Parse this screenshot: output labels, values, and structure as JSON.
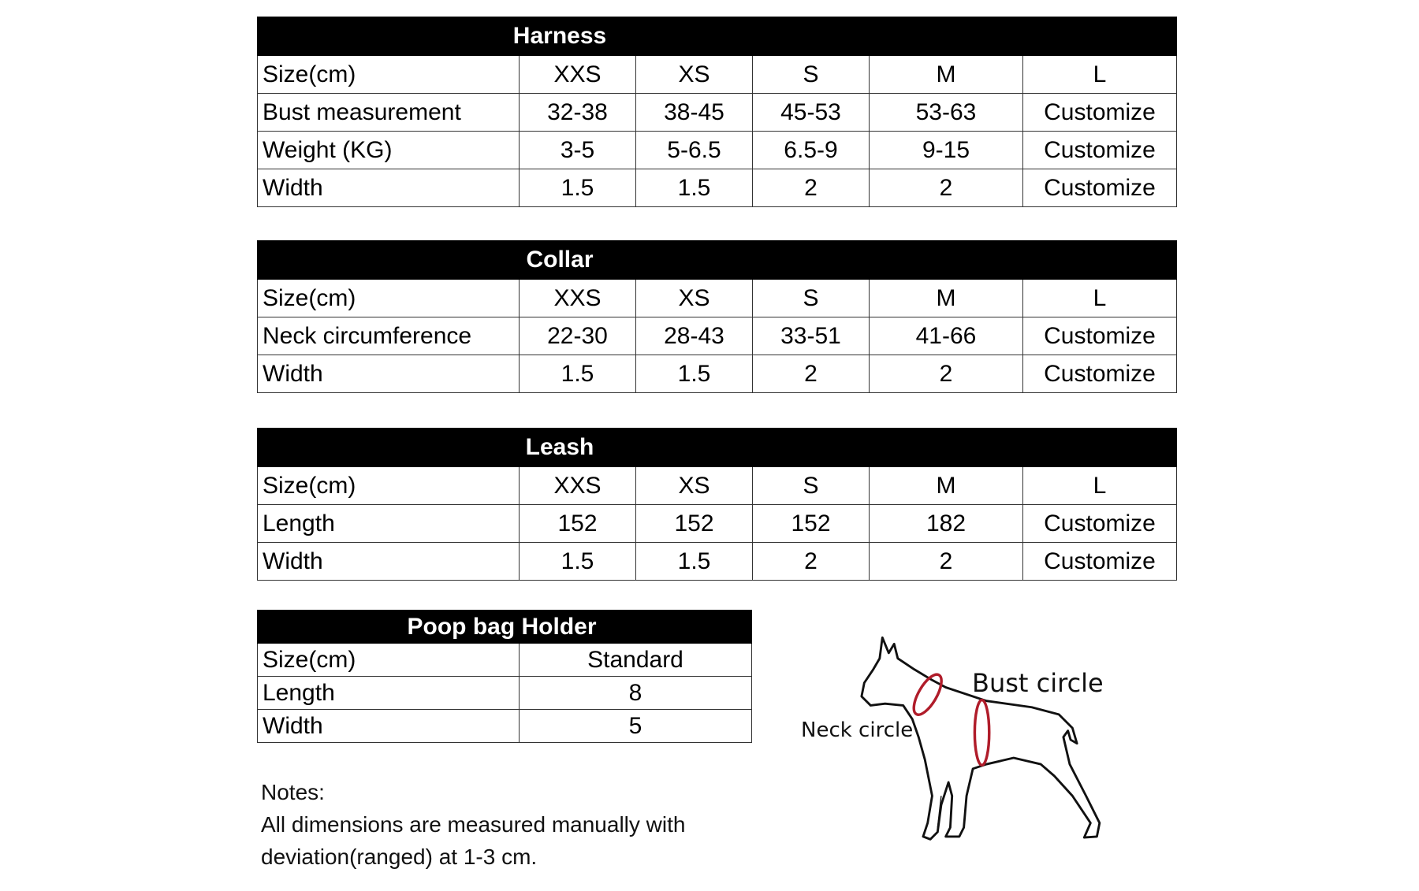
{
  "tables": [
    {
      "title": "Harness",
      "rows": [
        [
          "Size(cm)",
          "XXS",
          "XS",
          "S",
          "M",
          "L"
        ],
        [
          "Bust measurement",
          "32-38",
          "38-45",
          "45-53",
          "53-63",
          "Customize"
        ],
        [
          "Weight (KG)",
          "3-5",
          "5-6.5",
          "6.5-9",
          "9-15",
          "Customize"
        ],
        [
          "Width",
          "1.5",
          "1.5",
          "2",
          "2",
          "Customize"
        ]
      ]
    },
    {
      "title": "Collar",
      "rows": [
        [
          "Size(cm)",
          "XXS",
          "XS",
          "S",
          "M",
          "L"
        ],
        [
          "Neck circumference",
          "22-30",
          "28-43",
          "33-51",
          "41-66",
          "Customize"
        ],
        [
          "Width",
          "1.5",
          "1.5",
          "2",
          "2",
          "Customize"
        ]
      ]
    },
    {
      "title": "Leash",
      "rows": [
        [
          "Size(cm)",
          "XXS",
          "XS",
          "S",
          "M",
          "L"
        ],
        [
          "Length",
          "152",
          "152",
          "152",
          "182",
          "Customize"
        ],
        [
          "Width",
          "1.5",
          "1.5",
          "2",
          "2",
          "Customize"
        ]
      ]
    },
    {
      "title": "Poop bag Holder",
      "rows": [
        [
          "Size(cm)",
          "Standard"
        ],
        [
          "Length",
          "8"
        ],
        [
          "Width",
          "5"
        ]
      ]
    }
  ],
  "notes": [
    "Notes:",
    "All dimensions are measured manually with",
    "deviation(ranged) at 1-3 cm."
  ],
  "diagram": {
    "bust_label": "Bust circle",
    "neck_label": "Neck circle"
  }
}
